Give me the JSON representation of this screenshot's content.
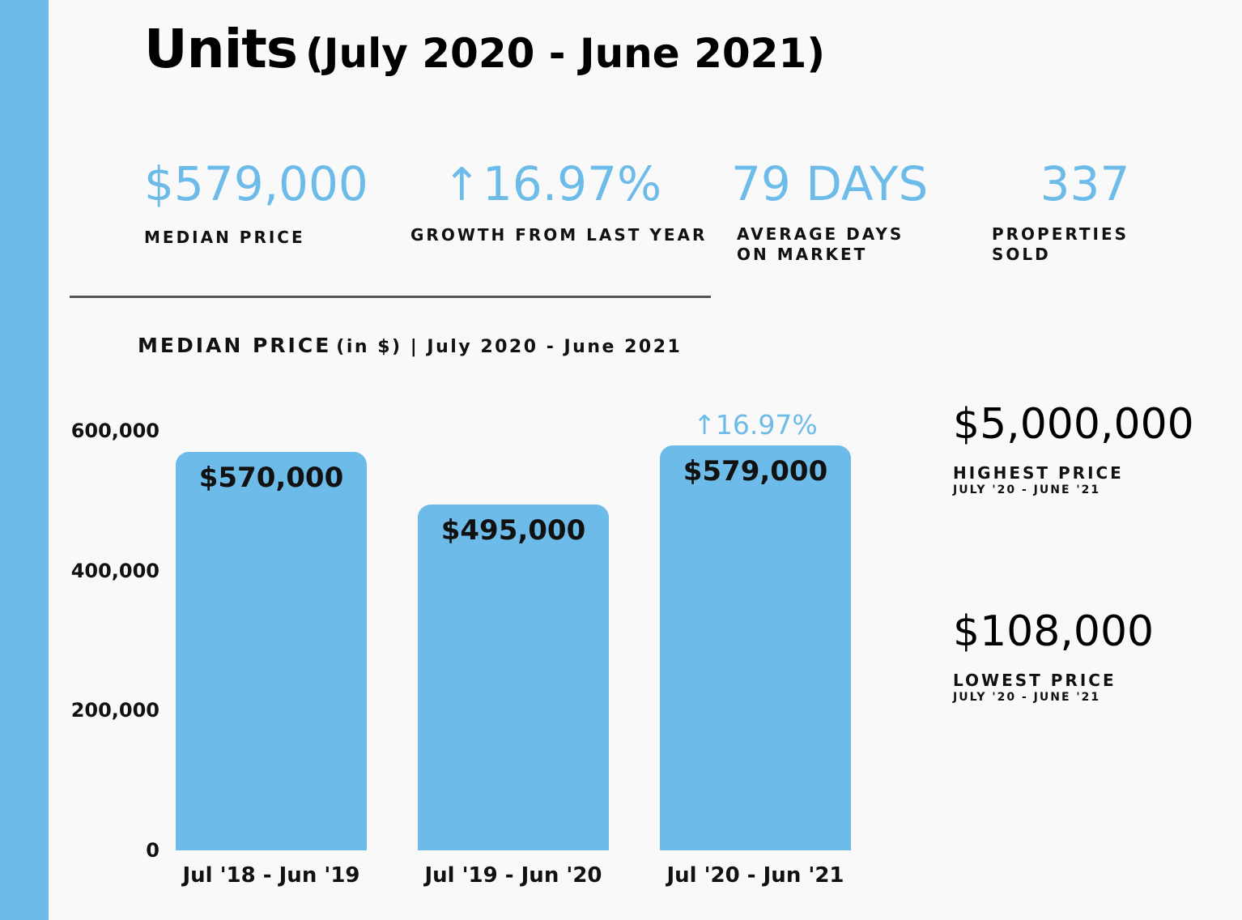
{
  "title": {
    "main": "Units",
    "period": "(July 2020 - June 2021)"
  },
  "stats": [
    {
      "value": "$579,000",
      "label": "MEDIAN PRICE"
    },
    {
      "arrow": "↑",
      "value": "16.97%",
      "label": "GROWTH FROM LAST YEAR"
    },
    {
      "value": "79 DAYS",
      "label": "AVERAGE DAYS ON MARKET"
    },
    {
      "value": "337",
      "label": "PROPERTIES SOLD"
    }
  ],
  "accent_color": "#6dbbe8",
  "chart_data": {
    "type": "bar",
    "title": "MEDIAN PRICE",
    "title_suffix": "(in $) | July 2020 - June 2021",
    "categories": [
      "Jul '18 - Jun '19",
      "Jul '19 - Jun '20",
      "Jul '20 - Jun '21"
    ],
    "values": [
      570000,
      495000,
      579000
    ],
    "value_labels": [
      "$570,000",
      "$495,000",
      "$579,000"
    ],
    "yticks": [
      "0",
      "200,000",
      "400,000",
      "600,000"
    ],
    "ylim": [
      0,
      600000
    ],
    "annotation": {
      "arrow": "↑",
      "text": "16.97%",
      "category_index": 2
    },
    "grid": false,
    "bar_color": "#6dbbe8"
  },
  "side_stats": {
    "highest": {
      "value": "$5,000,000",
      "label": "HIGHEST PRICE",
      "period": "JULY '20 - JUNE '21"
    },
    "lowest": {
      "value": "$108,000",
      "label": "LOWEST PRICE",
      "period": "JULY '20 - JUNE '21"
    }
  }
}
